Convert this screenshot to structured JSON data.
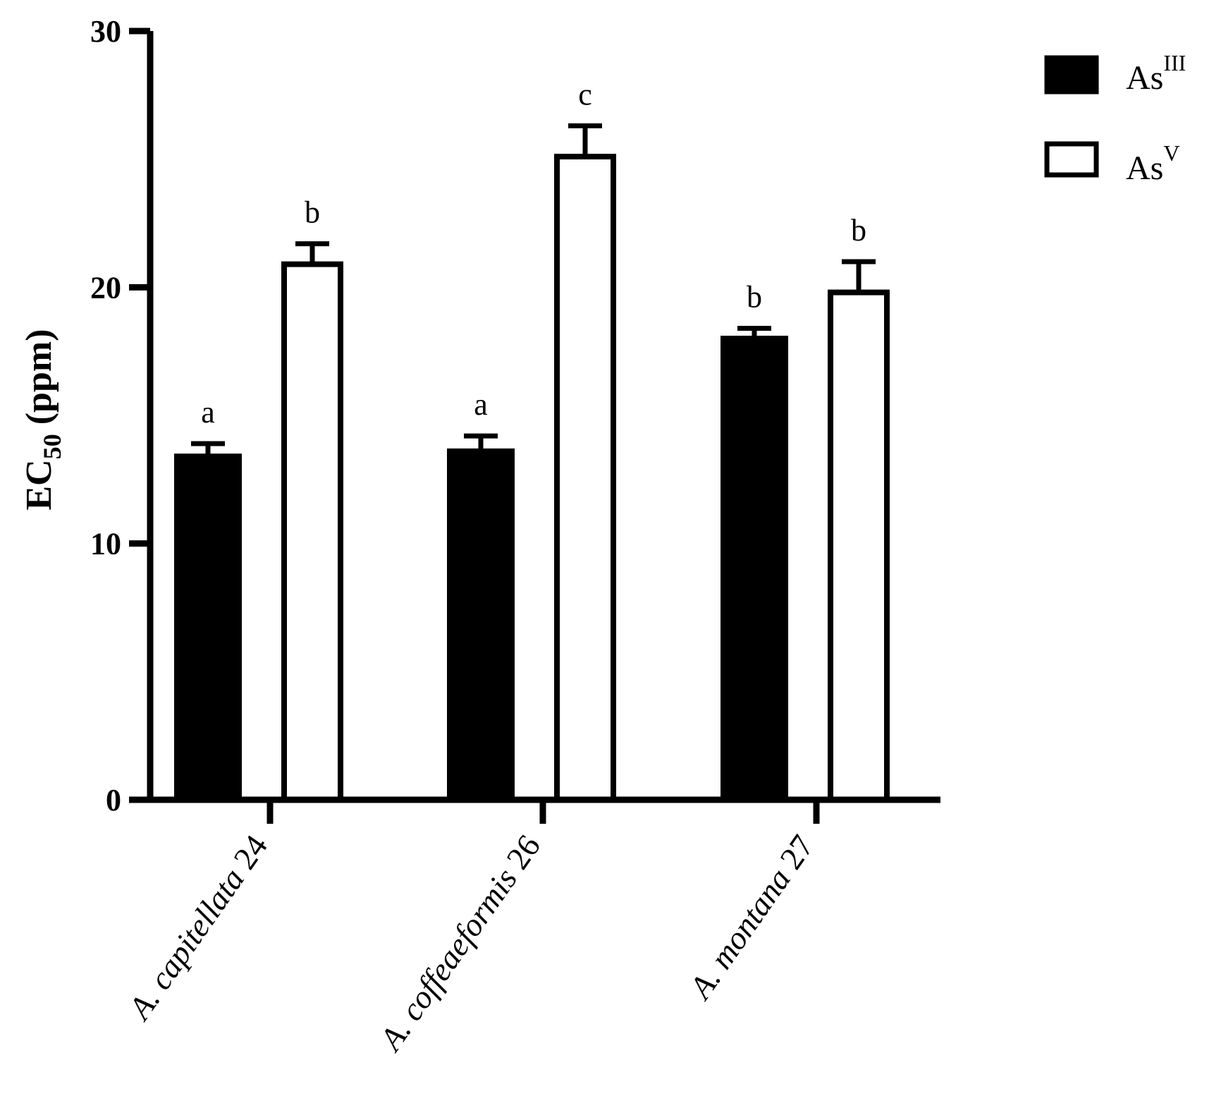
{
  "chart_data": {
    "type": "bar",
    "ylabel": {
      "main": "EC",
      "sub": "50",
      "rest": " (ppm)"
    },
    "ylim": [
      0,
      30
    ],
    "yticks": [
      0,
      10,
      20,
      30
    ],
    "yticks_labels": [
      "0",
      "10",
      "20",
      "30"
    ],
    "categories": [
      {
        "italic": "A. capitellata",
        "plain": " 24"
      },
      {
        "italic": "A. coffeaeformis",
        "plain": " 26"
      },
      {
        "italic": "A.  montana",
        "plain": " 27"
      }
    ],
    "series": [
      {
        "name": "AsIII",
        "label_base": "As",
        "label_sup": "III",
        "fill": "#000000",
        "values": [
          13.4,
          13.6,
          18.0
        ],
        "errors": [
          0.5,
          0.6,
          0.4
        ],
        "letters": [
          "a",
          "a",
          "b"
        ]
      },
      {
        "name": "AsV",
        "label_base": "As",
        "label_sup": "V",
        "fill": "#ffffff",
        "values": [
          20.9,
          25.1,
          19.8
        ],
        "errors": [
          0.8,
          1.2,
          1.2
        ],
        "letters": [
          "b",
          "c",
          "b"
        ]
      }
    ],
    "grid": false,
    "legend": "top-right"
  }
}
